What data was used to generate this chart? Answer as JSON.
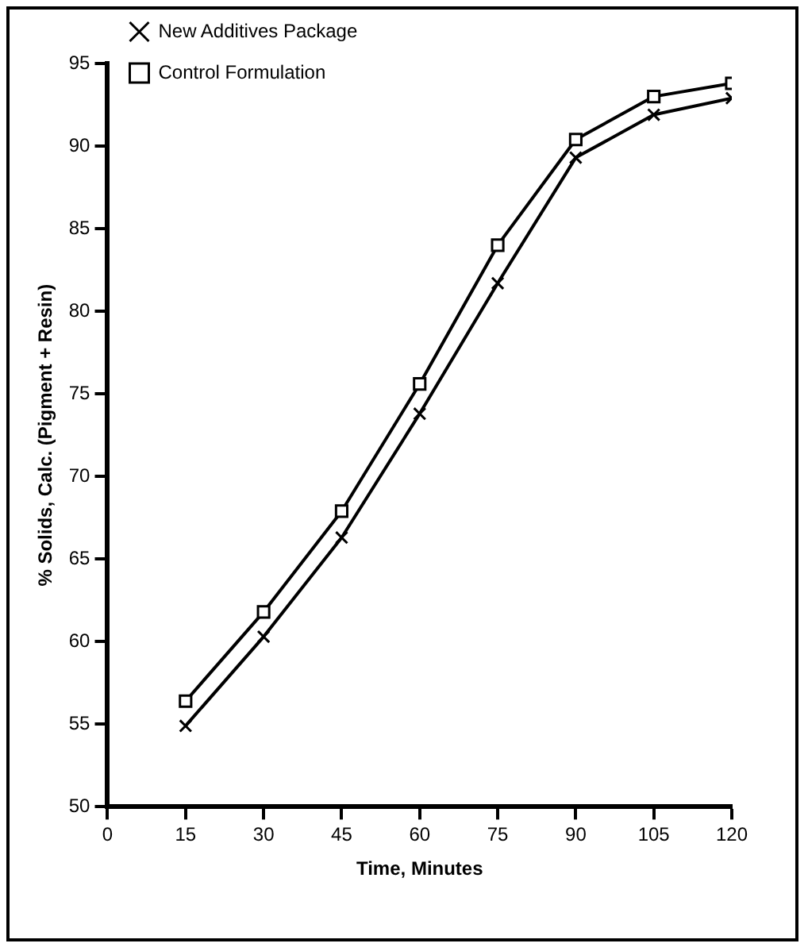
{
  "chart_data": {
    "type": "line",
    "xlabel": "Time, Minutes",
    "ylabel": "% Solids, Calc. (Pigment + Resin)",
    "x": [
      15,
      30,
      45,
      60,
      75,
      90,
      105,
      120
    ],
    "series": [
      {
        "name": "New Additives Package",
        "color": "#000000",
        "marker": "cross",
        "values": [
          54.9,
          60.3,
          66.3,
          73.8,
          81.7,
          89.3,
          91.9,
          92.9
        ]
      },
      {
        "name": "Control Formulation",
        "color": "#000000",
        "marker": "square",
        "values": [
          56.4,
          61.8,
          67.9,
          75.6,
          84.0,
          90.4,
          93.0,
          93.8
        ]
      }
    ],
    "xlim": [
      0,
      120
    ],
    "xticks": [
      0,
      15,
      30,
      45,
      60,
      75,
      90,
      105,
      120
    ],
    "ylim": [
      50,
      95
    ],
    "yticks": [
      50,
      55,
      60,
      65,
      70,
      75,
      80,
      85,
      90,
      95
    ],
    "grid": false,
    "legend": "top left",
    "line_style": "solid"
  }
}
